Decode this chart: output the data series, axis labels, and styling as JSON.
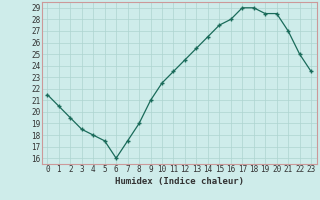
{
  "x": [
    0,
    1,
    2,
    3,
    4,
    5,
    6,
    7,
    8,
    9,
    10,
    11,
    12,
    13,
    14,
    15,
    16,
    17,
    18,
    19,
    20,
    21,
    22,
    23
  ],
  "y": [
    21.5,
    20.5,
    19.5,
    18.5,
    18.0,
    17.5,
    16.0,
    17.5,
    19.0,
    21.0,
    22.5,
    23.5,
    24.5,
    25.5,
    26.5,
    27.5,
    28.0,
    29.0,
    29.0,
    28.5,
    28.5,
    27.0,
    25.0,
    23.5
  ],
  "line_color": "#1a6b5a",
  "marker": "+",
  "marker_size": 3.5,
  "marker_linewidth": 1.0,
  "line_width": 0.9,
  "background_color": "#ceecea",
  "grid_color": "#add4d0",
  "xlabel": "Humidex (Indice chaleur)",
  "xlim": [
    -0.5,
    23.5
  ],
  "ylim": [
    15.5,
    29.5
  ],
  "yticks": [
    16,
    17,
    18,
    19,
    20,
    21,
    22,
    23,
    24,
    25,
    26,
    27,
    28,
    29
  ],
  "xticks": [
    0,
    1,
    2,
    3,
    4,
    5,
    6,
    7,
    8,
    9,
    10,
    11,
    12,
    13,
    14,
    15,
    16,
    17,
    18,
    19,
    20,
    21,
    22,
    23
  ],
  "xtick_labels": [
    "0",
    "1",
    "2",
    "3",
    "4",
    "5",
    "6",
    "7",
    "8",
    "9",
    "10",
    "11",
    "12",
    "13",
    "14",
    "15",
    "16",
    "17",
    "18",
    "19",
    "20",
    "21",
    "22",
    "23"
  ],
  "border_color": "#cc9999",
  "font_color": "#333333",
  "tick_fontsize": 5.5,
  "xlabel_fontsize": 6.5
}
